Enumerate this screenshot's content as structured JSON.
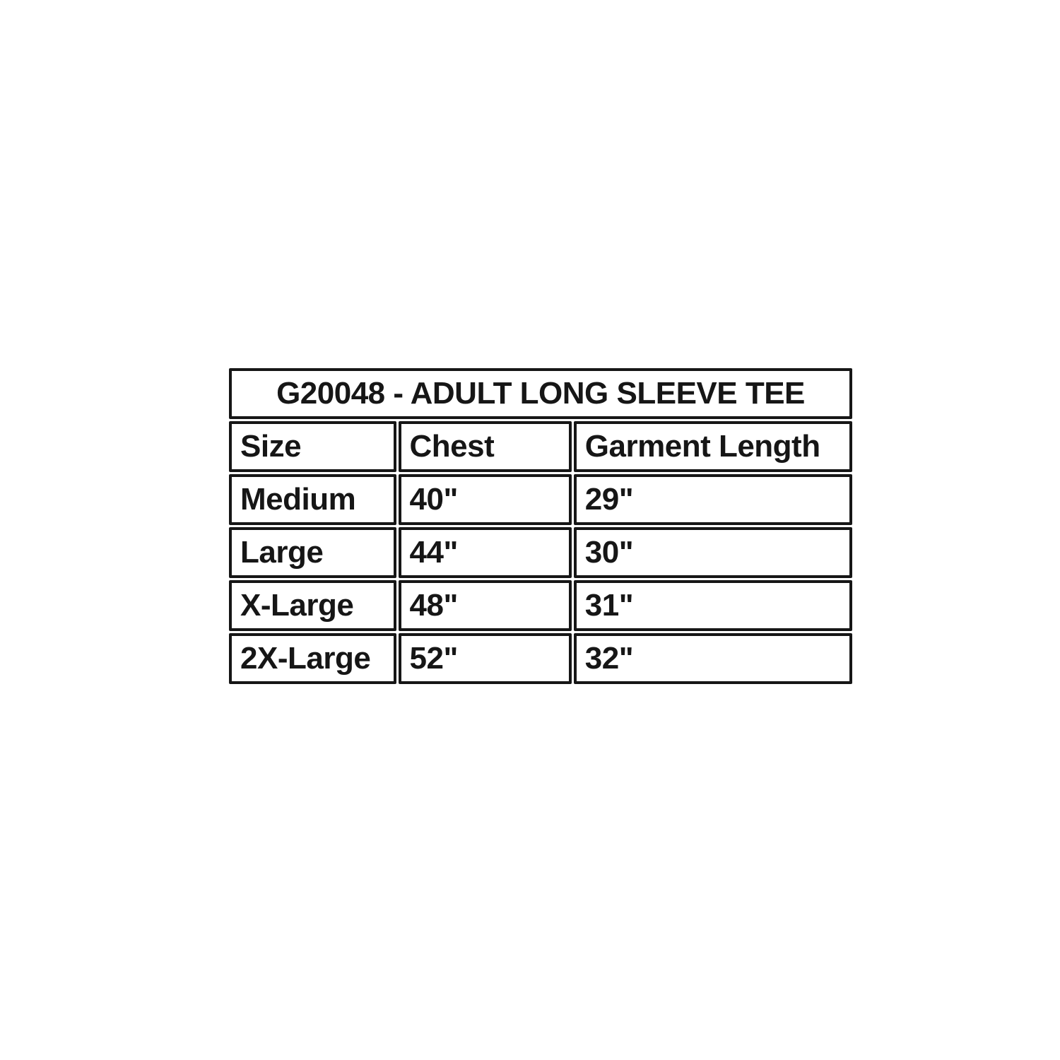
{
  "page": {
    "background_color": "#ffffff",
    "text_color": "#161616",
    "border_color": "#161616"
  },
  "table": {
    "title": "G20048 - ADULT LONG SLEEVE TEE",
    "columns": [
      "Size",
      "Chest",
      "Garment Length"
    ],
    "rows": [
      {
        "size": "Medium",
        "chest": "40\"",
        "garment_length": "29\""
      },
      {
        "size": "Large",
        "chest": "44\"",
        "garment_length": "30\""
      },
      {
        "size": "X-Large",
        "chest": "48\"",
        "garment_length": "31\""
      },
      {
        "size": "2X-Large",
        "chest": "52\"",
        "garment_length": "32\""
      }
    ]
  },
  "chart_data": {
    "type": "table",
    "title": "G20048 - ADULT LONG SLEEVE TEE",
    "columns": [
      "Size",
      "Chest",
      "Garment Length"
    ],
    "rows": [
      [
        "Medium",
        "40\"",
        "29\""
      ],
      [
        "Large",
        "44\"",
        "30\""
      ],
      [
        "X-Large",
        "48\"",
        "31\""
      ],
      [
        "2X-Large",
        "52\"",
        "32\""
      ]
    ]
  }
}
